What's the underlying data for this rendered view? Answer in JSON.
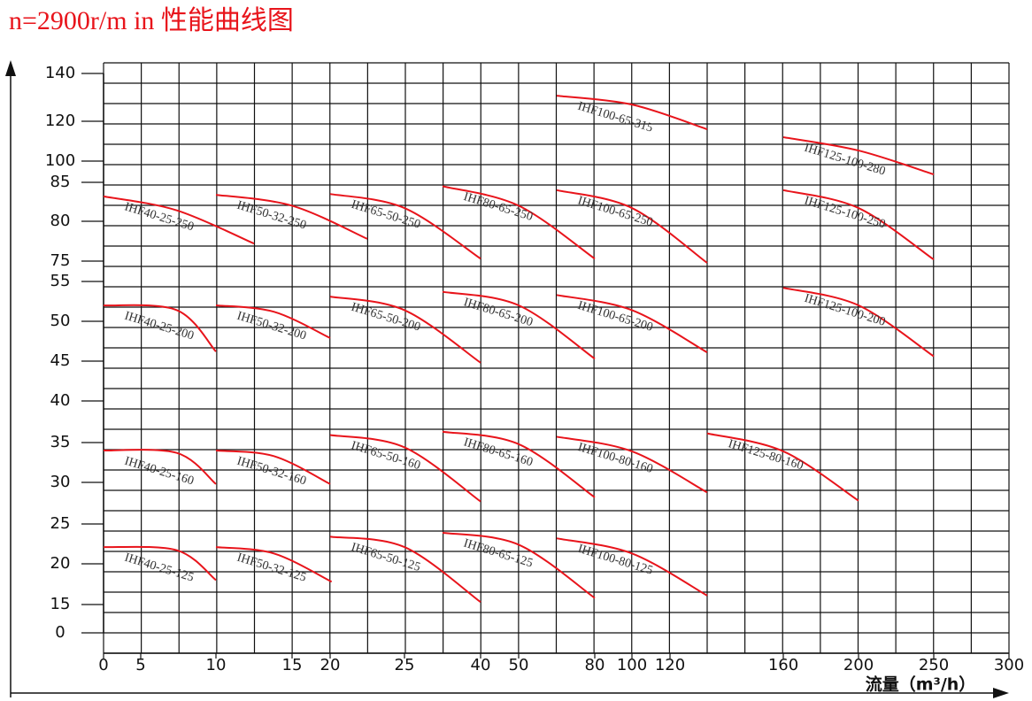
{
  "chart_data": {
    "type": "line",
    "title": "n=2900r/m in 性能曲线图",
    "x_label": "流量（m³/h）",
    "xlim": [
      0,
      300
    ],
    "ylim": [
      0,
      140
    ],
    "xticks": [
      0,
      5,
      10,
      15,
      20,
      25,
      40,
      50,
      80,
      100,
      120,
      160,
      200,
      250,
      300
    ],
    "yticks": [
      140,
      120,
      100,
      85,
      80,
      75,
      55,
      50,
      45,
      40,
      35,
      30,
      25,
      20,
      15,
      0
    ],
    "grid": true,
    "series": [
      {
        "name": "IHF40-25-250",
        "color": "#e8141b",
        "x": [
          0,
          7.4,
          12.5
        ],
        "values": [
          83.2,
          81.4,
          77.2
        ]
      },
      {
        "name": "IHF50-32-250",
        "color": "#e8141b",
        "x": [
          10,
          15,
          22.5
        ],
        "values": [
          83.4,
          82.0,
          77.8
        ]
      },
      {
        "name": "IHF65-50-250",
        "color": "#e8141b",
        "x": [
          20,
          25,
          40
        ],
        "values": [
          83.5,
          81.7,
          75.3
        ]
      },
      {
        "name": "IHF80-65-250",
        "color": "#e8141b",
        "x": [
          32.5,
          50,
          80
        ],
        "values": [
          84.5,
          82.0,
          75.3
        ]
      },
      {
        "name": "IHF100-65-250",
        "color": "#e8141b",
        "x": [
          65,
          100,
          133.1
        ],
        "values": [
          84.0,
          81.7,
          73.3
        ]
      },
      {
        "name": "IHF125-100-250",
        "color": "#e8141b",
        "x": [
          160,
          200,
          250
        ],
        "values": [
          84.0,
          81.7,
          75.2
        ]
      },
      {
        "name": "IHF100-65-315",
        "color": "#e8141b",
        "x": [
          65,
          100,
          133.1
        ],
        "values": [
          130.7,
          127.0,
          116.0
        ]
      },
      {
        "name": "IHF125-100-280",
        "color": "#e8141b",
        "x": [
          160,
          200,
          250
        ],
        "values": [
          112.0,
          105.3,
          90.6
        ]
      },
      {
        "name": "IHF40-25-200",
        "color": "#e8141b",
        "x": [
          0,
          7.4,
          10
        ],
        "values": [
          52.0,
          51.4,
          46.2
        ]
      },
      {
        "name": "IHF50-32-200",
        "color": "#e8141b",
        "x": [
          10,
          13.8,
          20
        ],
        "values": [
          52.0,
          51.2,
          47.9
        ]
      },
      {
        "name": "IHF65-50-200",
        "color": "#e8141b",
        "x": [
          20,
          25,
          40
        ],
        "values": [
          53.1,
          51.4,
          44.8
        ]
      },
      {
        "name": "IHF80-65-200",
        "color": "#e8141b",
        "x": [
          32.5,
          50,
          80
        ],
        "values": [
          53.7,
          52.0,
          45.3
        ]
      },
      {
        "name": "IHF100-65-200",
        "color": "#e8141b",
        "x": [
          65,
          100,
          133.1
        ],
        "values": [
          53.3,
          51.4,
          46.1
        ]
      },
      {
        "name": "IHF125-100-200",
        "color": "#e8141b",
        "x": [
          160,
          200,
          250
        ],
        "values": [
          54.2,
          52.0,
          45.6
        ]
      },
      {
        "name": "IHF40-25-160",
        "color": "#e8141b",
        "x": [
          0,
          7.4,
          10
        ],
        "values": [
          34.0,
          33.7,
          29.8
        ]
      },
      {
        "name": "IHF50-32-160",
        "color": "#e8141b",
        "x": [
          10,
          13.8,
          20
        ],
        "values": [
          34.0,
          33.3,
          29.8
        ]
      },
      {
        "name": "IHF65-50-160",
        "color": "#e8141b",
        "x": [
          20,
          25,
          40
        ],
        "values": [
          35.9,
          34.4,
          27.7
        ]
      },
      {
        "name": "IHF80-65-160",
        "color": "#e8141b",
        "x": [
          32.5,
          50,
          80
        ],
        "values": [
          36.3,
          34.8,
          28.2
        ]
      },
      {
        "name": "IHF100-80-160",
        "color": "#e8141b",
        "x": [
          65,
          100,
          133.1
        ],
        "values": [
          35.7,
          33.9,
          28.8
        ]
      },
      {
        "name": "IHF125-80-160",
        "color": "#e8141b",
        "x": [
          133.1,
          160,
          200
        ],
        "values": [
          36.1,
          33.9,
          27.8
        ]
      },
      {
        "name": "IHF40-25-125",
        "color": "#e8141b",
        "x": [
          0,
          7.4,
          10
        ],
        "values": [
          22.1,
          21.7,
          18.0
        ]
      },
      {
        "name": "IHF50-32-125",
        "color": "#e8141b",
        "x": [
          10,
          13.8,
          20.1
        ],
        "values": [
          22.1,
          21.3,
          17.8
        ]
      },
      {
        "name": "IHF65-50-125",
        "color": "#e8141b",
        "x": [
          20,
          25,
          40
        ],
        "values": [
          23.4,
          22.1,
          15.3
        ]
      },
      {
        "name": "IHF80-65-125",
        "color": "#e8141b",
        "x": [
          32.5,
          50,
          80
        ],
        "values": [
          23.9,
          22.4,
          15.8
        ]
      },
      {
        "name": "IHF100-80-125",
        "color": "#e8141b",
        "x": [
          65,
          100,
          133.1
        ],
        "values": [
          23.2,
          21.3,
          16.1
        ]
      }
    ]
  }
}
